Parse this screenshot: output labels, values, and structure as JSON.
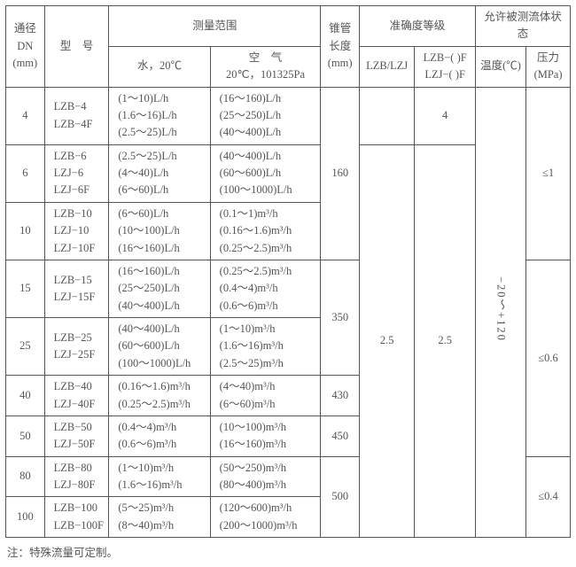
{
  "header": {
    "dn": "通径\nDN\n(mm)",
    "model": "型　号",
    "range_grp": "测量范围",
    "water": "水，20℃",
    "air": "空　气\n20℃，101325Pa",
    "cone": "锥管\n长度\n(mm)",
    "acc_grp": "准确度等级",
    "acc1": "LZB/LZJ",
    "acc2": "LZB−( )F\nLZJ−( )F",
    "fluid_grp": "允许被测流体状态",
    "temp": "温度(℃)",
    "press": "压力\n(MPa)"
  },
  "rows": [
    {
      "dn": "4",
      "model": "LZB−4\nLZB−4F",
      "water": "(1～10)L/h\n(1.6～16)L/h\n(2.5～25)L/h",
      "air": "(16～160)L/h\n(25～250)L/h\n(40～400)L/h"
    },
    {
      "dn": "6",
      "model": "LZB−6\nLZJ−6\nLZJ−6F",
      "water": "(2.5～25)L/h\n(4～40)L/h\n(6～60)L/h",
      "air": "(40～400)L/h\n(60～600)L/h\n(100～1000)L/h"
    },
    {
      "dn": "10",
      "model": "LZB−10\nLZJ−10\nLZJ−10F",
      "water": "(6～60)L/h\n(10～100)L/h\n(16～160)L/h",
      "air": "(0.1～1)m³/h\n(0.16～1.6)m³/h\n(0.25～2.5)m³/h"
    },
    {
      "dn": "15",
      "model": "LZB−15\nLZJ−15F",
      "water": "(16～160)L/h\n(25～250)L/h\n(40～400)L/h",
      "air": "(0.25～2.5)m³/h\n(0.4～4)m³/h\n(0.6～6)m³/h"
    },
    {
      "dn": "25",
      "model": "LZB−25\nLZJ−25F",
      "water": "(40～400)L/h\n(60～600)L/h\n(100～1000)L/h",
      "air": "(1～10)m³/h\n(1.6～16)m³/h\n(2.5～25)m³/h"
    },
    {
      "dn": "40",
      "model": "LZB−40\nLZJ−40F",
      "water": "(0.16～1.6)m³/h\n(0.25～2.5)m³/h",
      "air": "(4～40)m³/h\n(6～60)m³/h"
    },
    {
      "dn": "50",
      "model": "LZB−50\nLZJ−50F",
      "water": "(0.4～4)m³/h\n(0.6～6)m³/h",
      "air": "(10～100)m³/h\n(16～160)m³/h"
    },
    {
      "dn": "80",
      "model": "LZB−80\nLZJ−80F",
      "water": "(1～10)m³/h\n(1.6～16)m³/h",
      "air": "(50～250)m³/h\n(80～400)m³/h"
    },
    {
      "dn": "100",
      "model": "LZB−100\nLZB−100F",
      "water": "(5～25)m³/h\n(8～40)m³/h",
      "air": "(120～600)m³/h\n(200～1000)m³/h"
    }
  ],
  "cone": {
    "a": "160",
    "b": "350",
    "c": "430",
    "d": "450",
    "e": "500"
  },
  "acc": {
    "a1": "",
    "a2": "4",
    "b1": "2.5",
    "b2": "2.5"
  },
  "temp": "−20～+120",
  "press": {
    "a": "≤1",
    "b": "≤0.6",
    "c": "≤0.4"
  },
  "note": "注：特殊流量可定制。"
}
